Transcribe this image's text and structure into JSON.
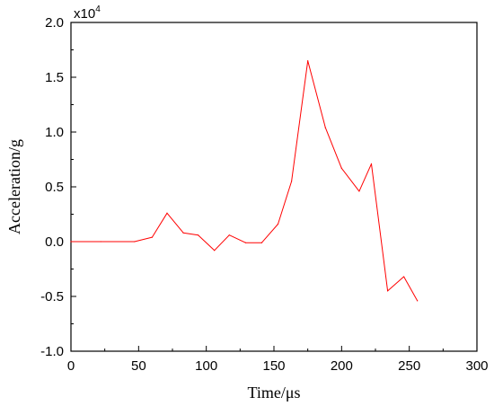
{
  "chart_data": {
    "type": "line",
    "xlabel": "Time/μs",
    "ylabel": "Acceleration/g",
    "y_multiplier": {
      "base": "x10",
      "exponent": "4"
    },
    "xlim": [
      0,
      300
    ],
    "ylim": [
      -1.0,
      2.0
    ],
    "x_ticks": [
      "0",
      "50",
      "100",
      "150",
      "200",
      "250",
      "300"
    ],
    "y_ticks": [
      "-1.0",
      "-0.5",
      "0.0",
      "0.5",
      "1.0",
      "1.5",
      "2.0"
    ],
    "grid": false,
    "series": [
      {
        "color": "#ff0000",
        "x": [
          0,
          22,
          47,
          60,
          71,
          83,
          94,
          106,
          117,
          129,
          141,
          153,
          163,
          175,
          188,
          200,
          213,
          222,
          234,
          246,
          256
        ],
        "y": [
          0.0,
          0.0,
          0.0,
          0.04,
          0.26,
          0.08,
          0.06,
          -0.08,
          0.06,
          -0.01,
          -0.01,
          0.16,
          0.55,
          1.65,
          1.04,
          0.67,
          0.46,
          0.71,
          -0.45,
          -0.32,
          -0.54
        ]
      }
    ]
  }
}
